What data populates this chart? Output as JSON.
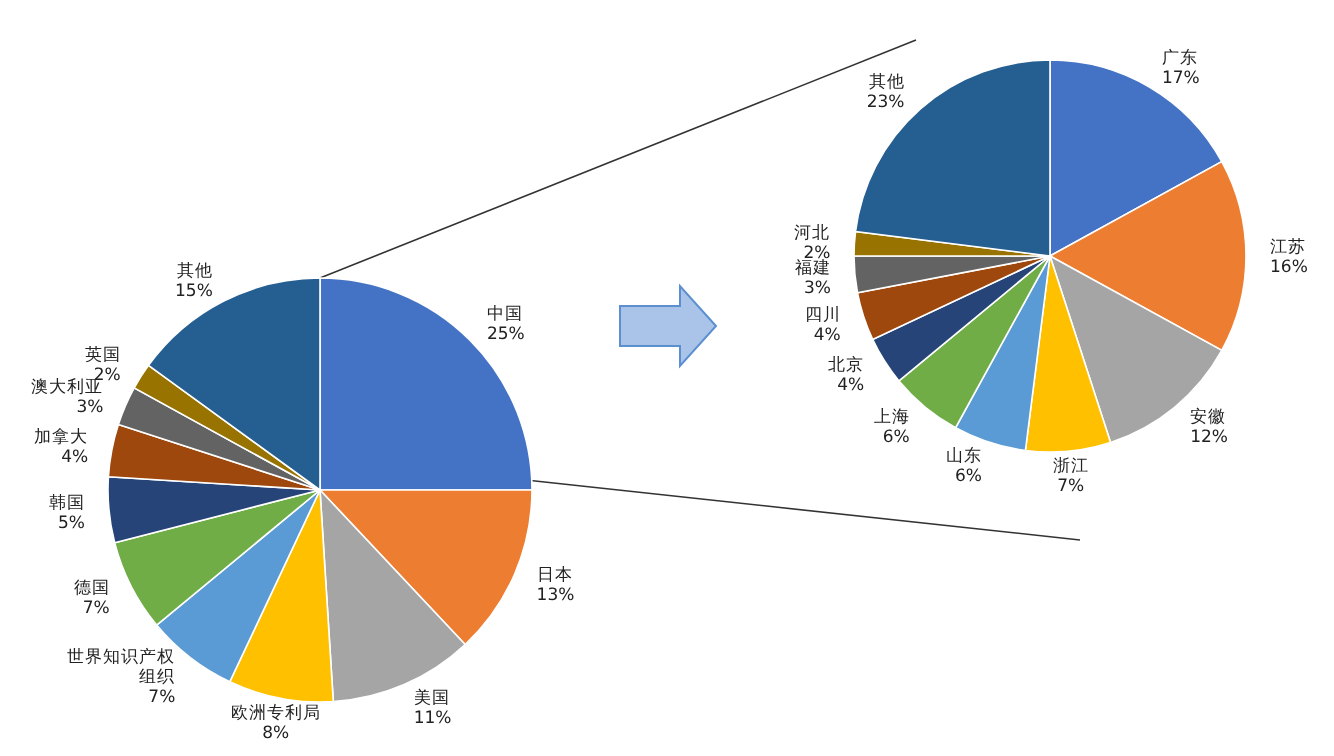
{
  "chart_data": [
    {
      "type": "pie",
      "categories": [
        "中国",
        "日本",
        "美国",
        "欧洲专利局",
        "世界知识产权组织",
        "德国",
        "韩国",
        "加拿大",
        "澳大利亚",
        "英国",
        "其他"
      ],
      "values": [
        25,
        13,
        11,
        8,
        7,
        7,
        5,
        4,
        3,
        2,
        15
      ],
      "colors": [
        "#4472c4",
        "#ed7d31",
        "#a5a5a5",
        "#ffc000",
        "#5b9bd5",
        "#70ad47",
        "#264478",
        "#9e480e",
        "#636363",
        "#997300",
        "#255e91"
      ],
      "value_labels": [
        "25%",
        "13%",
        "11%",
        "8%",
        "7%",
        "7%",
        "5%",
        "4%",
        "3%",
        "2%",
        "15%"
      ]
    },
    {
      "type": "pie",
      "categories": [
        "广东",
        "江苏",
        "安徽",
        "浙江",
        "山东",
        "上海",
        "北京",
        "四川",
        "福建",
        "河北",
        "其他"
      ],
      "values": [
        17,
        16,
        12,
        7,
        6,
        6,
        4,
        4,
        3,
        2,
        23
      ],
      "colors": [
        "#4472c4",
        "#ed7d31",
        "#a5a5a5",
        "#ffc000",
        "#5b9bd5",
        "#70ad47",
        "#264478",
        "#9e480e",
        "#636363",
        "#997300",
        "#255e91"
      ],
      "value_labels": [
        "17%",
        "16%",
        "12%",
        "7%",
        "6%",
        "6%",
        "4%",
        "4%",
        "3%",
        "2%",
        "23%"
      ]
    }
  ]
}
